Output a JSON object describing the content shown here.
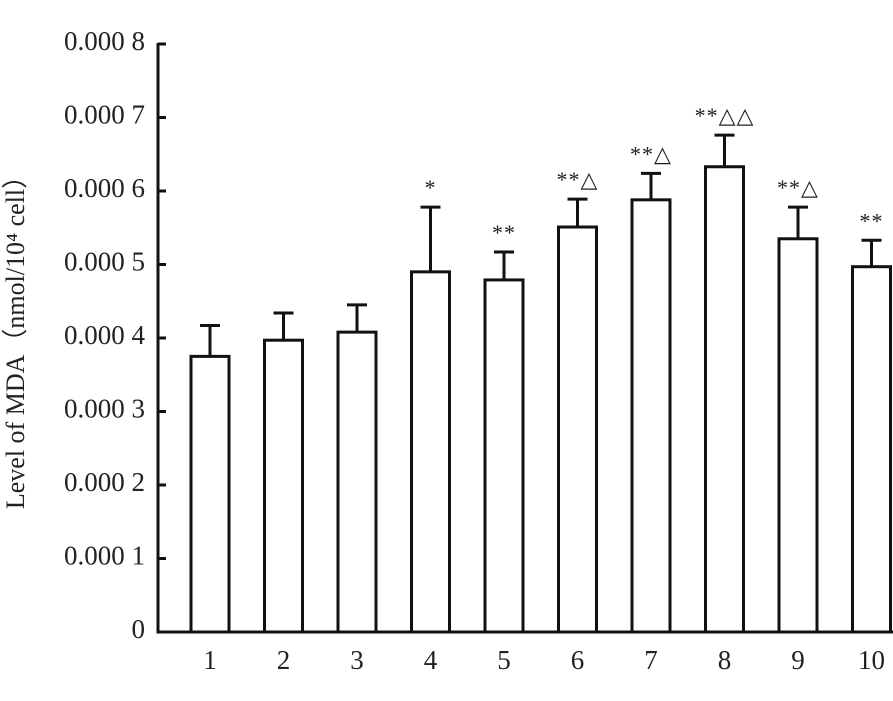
{
  "chart_data": {
    "type": "bar",
    "y_label": "Level of MDA（nmol/10⁴ cell）",
    "categories": [
      "1",
      "2",
      "3",
      "4",
      "5",
      "6",
      "7",
      "8",
      "9",
      "10"
    ],
    "values": [
      0.000375,
      0.000397,
      0.000408,
      0.00049,
      0.000479,
      0.000551,
      0.000588,
      0.000633,
      0.000535,
      0.000497
    ],
    "errors": [
      4.2e-05,
      3.7e-05,
      3.7e-05,
      8.8e-05,
      3.8e-05,
      3.8e-05,
      3.6e-05,
      4.3e-05,
      4.3e-05,
      3.6e-05
    ],
    "annotations": [
      null,
      null,
      null,
      "*",
      "**",
      "**△",
      "**△",
      "**△△",
      "**△",
      "**"
    ],
    "color": "#ffffff",
    "ylim": [
      0,
      0.0008
    ],
    "yticks": [
      0,
      {
        "value": 0.0001,
        "label": "0.000 1"
      },
      {
        "value": 0.0002,
        "label": "0.000 2"
      },
      {
        "value": 0.0003,
        "label": "0.000 3"
      },
      {
        "value": 0.0004,
        "label": "0.000 4"
      },
      {
        "value": 0.0005,
        "label": "0.000 5"
      },
      {
        "value": 0.0006,
        "label": "0.000 6"
      },
      {
        "value": 0.0007,
        "label": "0.000 7"
      },
      {
        "value": 0.0008,
        "label": "0.000 8"
      }
    ],
    "grid": false
  }
}
